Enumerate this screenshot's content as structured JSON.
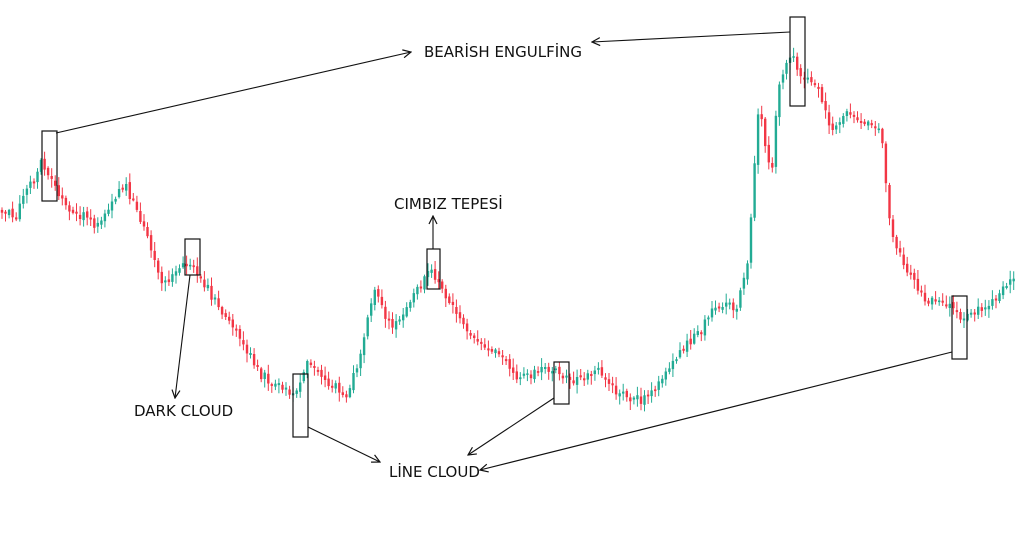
{
  "colors": {
    "up": "#22ab94",
    "down": "#f23645",
    "frame": "#111111",
    "background": "#ffffff"
  },
  "chart_data": {
    "type": "candlestick",
    "title": "",
    "xlabel": "",
    "ylabel": "",
    "grid": false,
    "annotations": [
      {
        "id": "bearish-engulfing",
        "text": "BEARİSH ENGULFİNG"
      },
      {
        "id": "cimbiz-tepesi",
        "text": "CIMBIZ TEPESİ"
      },
      {
        "id": "dark-cloud",
        "text": "DARK CLOUD"
      },
      {
        "id": "line-cloud",
        "text": "LİNE CLOUD"
      }
    ]
  }
}
